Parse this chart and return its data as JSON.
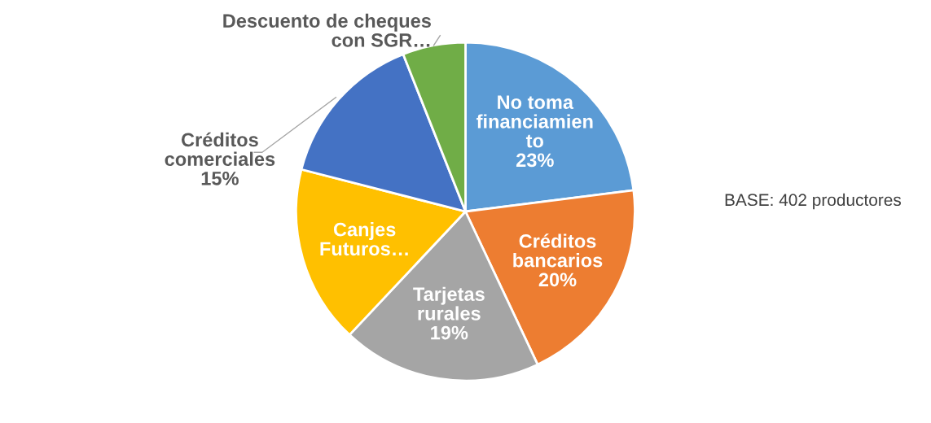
{
  "chart_data": {
    "type": "pie",
    "categories": [
      "No toma\nfinanciamien\nto",
      "Créditos\nbancarios",
      "Tarjetas\nrurales",
      "Canjes\nFuturos…",
      "Créditos\ncomerciales",
      "Descuento de cheques\ncon SGR…"
    ],
    "values": [
      23,
      20,
      19,
      17,
      15,
      6
    ],
    "value_labels": [
      "23%",
      "20%",
      "19%",
      null,
      "15%",
      null
    ],
    "colors": [
      "#5b9bd5",
      "#ed7d31",
      "#a5a5a5",
      "#ffc000",
      "#4472c4",
      "#70ad47"
    ],
    "annotations": [
      "BASE: 402 productores"
    ],
    "legend": false
  }
}
